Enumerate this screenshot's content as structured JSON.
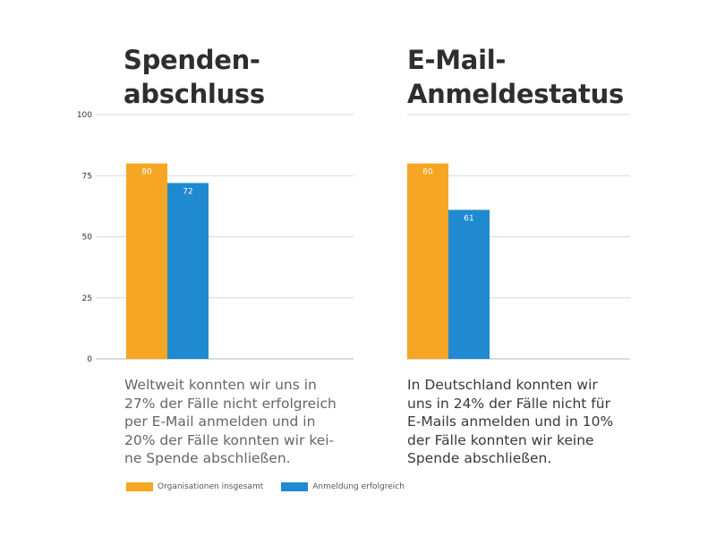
{
  "colors": {
    "orange": "#f5a623",
    "blue": "#1f8ad0",
    "grid": "#d9d9d9",
    "axis": "#333333"
  },
  "chart_data": [
    {
      "type": "bar",
      "title": "Spenden-abschluss",
      "title_lines": [
        "Spenden-",
        "abschluss"
      ],
      "categories": [
        ""
      ],
      "series": [
        {
          "name": "Organisationen insgesamt",
          "values": [
            80
          ],
          "labels": [
            "80"
          ]
        },
        {
          "name": "Anmeldung erfolgreich",
          "values": [
            72
          ],
          "labels": [
            "72"
          ]
        }
      ],
      "ylim": [
        0,
        100
      ],
      "yticks": [
        0,
        25,
        50,
        75,
        100
      ],
      "ytick_labels": [
        "0",
        "25",
        "50",
        "75",
        "100"
      ],
      "caption": "Weltweit konnten wir uns in 27% der Fälle nicht erfolgreich per E-Mail anmelden und in 20% der Fälle konnten wir kei-ne Spende abschließen.",
      "caption_lines": [
        "Weltweit konnten wir uns in",
        "27% der Fälle nicht erfolgreich",
        "per E-Mail anmelden und in",
        "20% der Fälle konnten wir kei-",
        "ne Spende abschließen."
      ]
    },
    {
      "type": "bar",
      "title": "E-Mail-Anmeldestatus",
      "title_lines": [
        "E-Mail-",
        "Anmeldestatus"
      ],
      "categories": [
        ""
      ],
      "series": [
        {
          "name": "Organisationen insgesamt",
          "values": [
            80
          ],
          "labels": [
            "80"
          ]
        },
        {
          "name": "Anmeldung erfolgreich",
          "values": [
            61
          ],
          "labels": [
            "61"
          ]
        }
      ],
      "ylim": [
        0,
        100
      ],
      "yticks": [
        0,
        25,
        50,
        75,
        100
      ],
      "caption": "In Deutschland konnten wir uns in 24% der Fälle nicht für E-Mails anmelden und in 10% der Fälle konnten wir keine Spende abschließen.",
      "caption_lines": [
        "In Deutschland konnten wir",
        "uns in 24% der Fälle nicht für",
        "E-Mails anmelden und in 10%",
        "der Fälle konnten wir keine",
        "Spende abschließen."
      ]
    }
  ],
  "legend": [
    {
      "label": "Organisationen insgesamt",
      "color": "#f5a623"
    },
    {
      "label": "Anmeldung erfolgreich",
      "color": "#1f8ad0"
    }
  ]
}
